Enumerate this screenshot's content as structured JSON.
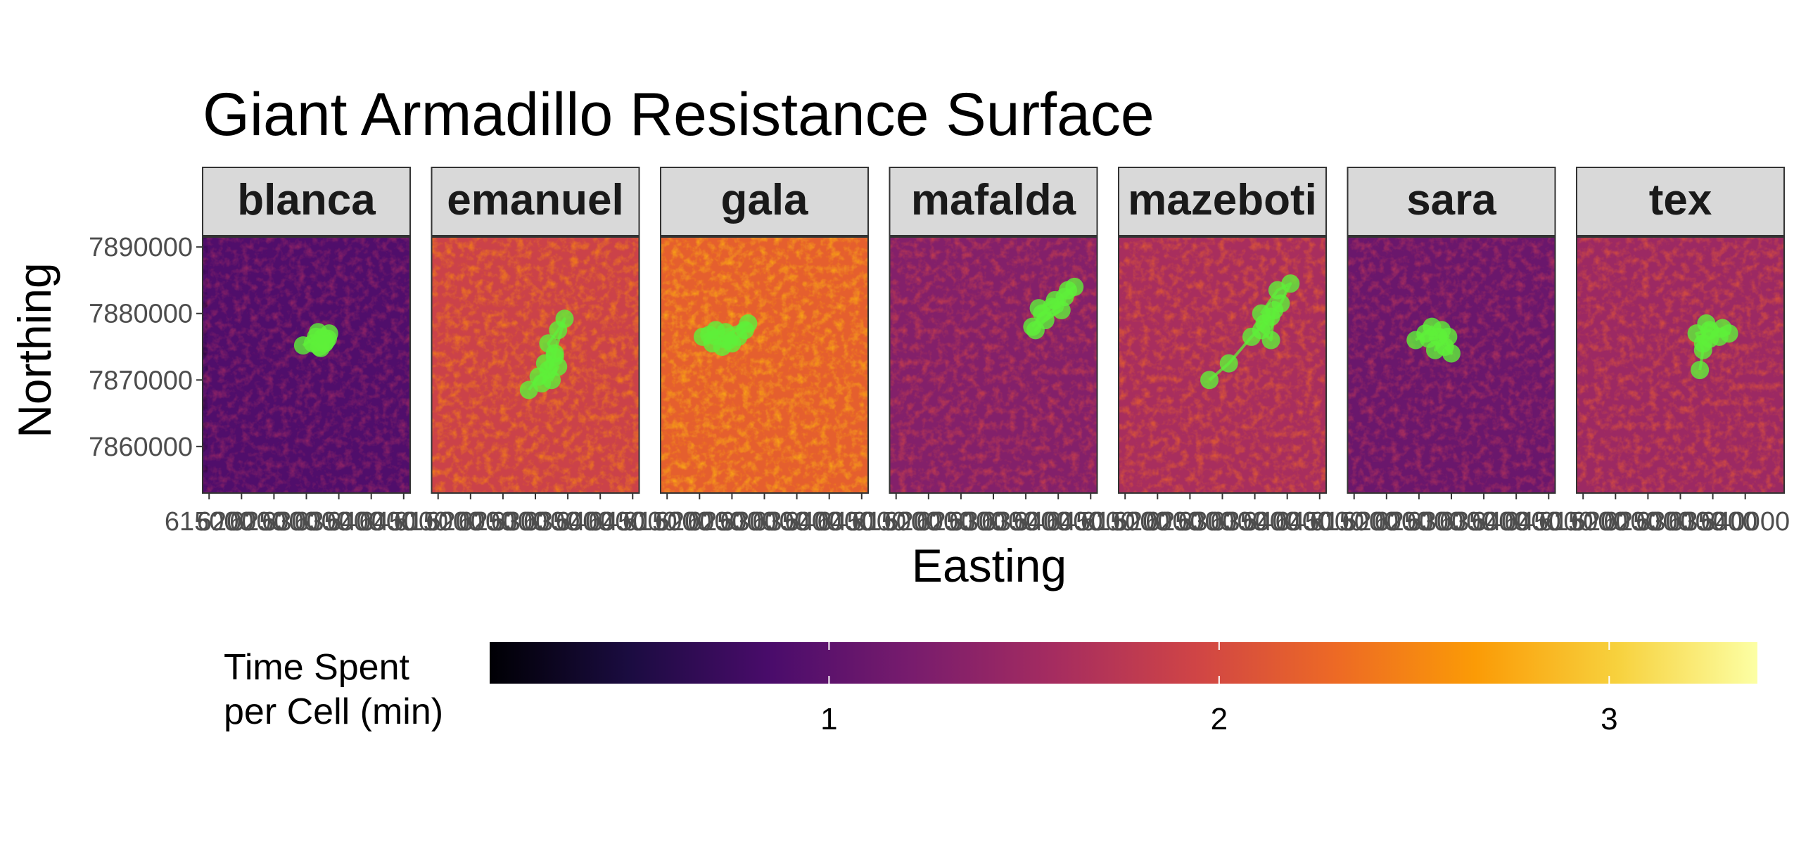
{
  "chart_data": {
    "type": "heatmap",
    "title": "Giant Armadillo Resistance Surface",
    "xlabel": "Easting",
    "ylabel": "Northing",
    "yticks": [
      {
        "value": 7890000,
        "label": "7890000"
      },
      {
        "value": 7880000,
        "label": "7880000"
      },
      {
        "value": 7870000,
        "label": "7870000"
      },
      {
        "value": 7860000,
        "label": "7860000"
      }
    ],
    "ylim": [
      7853000,
      7891500
    ],
    "xticks_overlapping": [
      "615000",
      "620000",
      "625000",
      "630000",
      "635000",
      "640000",
      "645000"
    ],
    "xticks_last_panel": [
      "615000",
      "620000",
      "625000",
      "630000",
      "635000",
      "640000"
    ],
    "xlim": [
      614000,
      646000
    ],
    "panels": [
      {
        "name": "blanca",
        "mean_value": 0.9,
        "track_color": "#5ef03a",
        "track": [
          [
            629500,
            7875200
          ],
          [
            631500,
            7876500
          ],
          [
            632500,
            7876400
          ],
          [
            633000,
            7875800
          ],
          [
            632000,
            7875000
          ],
          [
            633500,
            7877000
          ],
          [
            631000,
            7875500
          ],
          [
            632200,
            7874800
          ],
          [
            633300,
            7876200
          ],
          [
            631800,
            7877200
          ],
          [
            632800,
            7875500
          ]
        ]
      },
      {
        "name": "emanuel",
        "mean_value": 1.9,
        "track_color": "#5ef03a",
        "track": [
          [
            629000,
            7868500
          ],
          [
            630500,
            7870500
          ],
          [
            632000,
            7871500
          ],
          [
            633000,
            7873500
          ],
          [
            632000,
            7875500
          ],
          [
            633500,
            7877500
          ],
          [
            634500,
            7879200
          ],
          [
            633000,
            7874000
          ],
          [
            631500,
            7872500
          ],
          [
            632500,
            7870000
          ],
          [
            633500,
            7872000
          ],
          [
            631000,
            7869500
          ]
        ]
      },
      {
        "name": "gala",
        "mean_value": 2.2,
        "track_color": "#5ef03a",
        "track": [
          [
            620500,
            7876500
          ],
          [
            622500,
            7877500
          ],
          [
            624500,
            7876000
          ],
          [
            623500,
            7875000
          ],
          [
            626000,
            7876500
          ],
          [
            627000,
            7877500
          ],
          [
            625000,
            7875500
          ],
          [
            622000,
            7875500
          ],
          [
            627500,
            7878500
          ],
          [
            621500,
            7876800
          ],
          [
            624000,
            7877200
          ]
        ]
      },
      {
        "name": "mafalda",
        "mean_value": 1.3,
        "track_color": "#5ef03a",
        "track": [
          [
            636000,
            7878000
          ],
          [
            637500,
            7880000
          ],
          [
            639000,
            7881000
          ],
          [
            641500,
            7883500
          ],
          [
            640500,
            7880500
          ],
          [
            638000,
            7879000
          ],
          [
            636500,
            7877500
          ],
          [
            642500,
            7884000
          ],
          [
            639500,
            7882000
          ],
          [
            637000,
            7880800
          ],
          [
            641000,
            7882500
          ]
        ]
      },
      {
        "name": "mazeboti",
        "mean_value": 1.6,
        "track_color": "#5ef03a",
        "track": [
          [
            628000,
            7870000
          ],
          [
            631000,
            7872500
          ],
          [
            634500,
            7876500
          ],
          [
            636500,
            7878500
          ],
          [
            637500,
            7879500
          ],
          [
            636000,
            7877500
          ],
          [
            637500,
            7876000
          ],
          [
            638000,
            7880500
          ],
          [
            639000,
            7881500
          ],
          [
            640500,
            7884500
          ],
          [
            638500,
            7883500
          ],
          [
            636000,
            7880000
          ]
        ]
      },
      {
        "name": "sara",
        "mean_value": 1.1,
        "track_color": "#5ef03a",
        "track": [
          [
            624500,
            7876000
          ],
          [
            626000,
            7877000
          ],
          [
            627000,
            7878000
          ],
          [
            628000,
            7876500
          ],
          [
            629000,
            7875000
          ],
          [
            630000,
            7874000
          ],
          [
            628500,
            7877500
          ],
          [
            627500,
            7874500
          ],
          [
            629500,
            7876500
          ],
          [
            626500,
            7876200
          ]
        ]
      },
      {
        "name": "tex",
        "mean_value": 1.5,
        "track_color": "#5ef03a",
        "track": [
          [
            633000,
            7871500
          ],
          [
            633500,
            7874500
          ],
          [
            632500,
            7877000
          ],
          [
            634500,
            7877500
          ],
          [
            636000,
            7876500
          ],
          [
            637500,
            7877000
          ],
          [
            634000,
            7878500
          ],
          [
            633500,
            7875500
          ],
          [
            636500,
            7877800
          ],
          [
            634500,
            7876200
          ]
        ]
      }
    ],
    "legend": {
      "title_lines": [
        "Time Spent",
        "per Cell (min)"
      ],
      "position": "bottom",
      "range": [
        0.13,
        3.38
      ],
      "ticks": [
        {
          "value": 1,
          "label": "1"
        },
        {
          "value": 2,
          "label": "2"
        },
        {
          "value": 3,
          "label": "3"
        }
      ]
    },
    "colormap": [
      "#000004",
      "#1b0c41",
      "#4a0c6b",
      "#781c6d",
      "#a52c60",
      "#cf4446",
      "#ed6925",
      "#fb9b06",
      "#f7d13d",
      "#fcffa4"
    ]
  }
}
